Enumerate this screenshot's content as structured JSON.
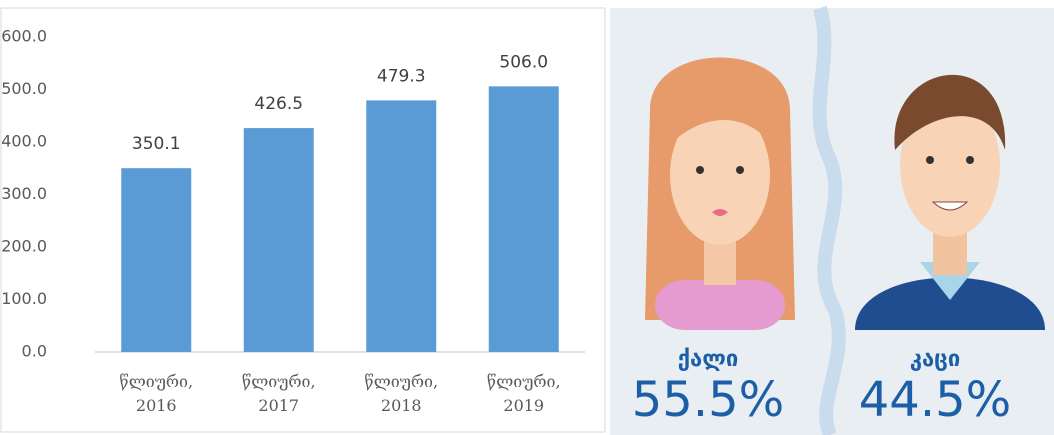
{
  "chart_data": [
    {
      "type": "bar",
      "categories": [
        "წლიური, 2016",
        "წლიური, 2017",
        "წლიური, 2018",
        "წლიური, 2019"
      ],
      "values": [
        350.1,
        426.5,
        479.3,
        506.0
      ],
      "value_labels": [
        "350.1",
        "426.5",
        "479.3",
        "506.0"
      ],
      "color": "#5b9bd5",
      "ylim": [
        0,
        600
      ],
      "yticks": [
        {
          "value": 0,
          "label": "0.0"
        },
        {
          "value": 100,
          "label": "100.0"
        },
        {
          "value": 200,
          "label": "200.0"
        },
        {
          "value": 300,
          "label": "300.0"
        },
        {
          "value": 400,
          "label": "400.0"
        },
        {
          "value": 500,
          "label": "500.0"
        },
        {
          "value": 600,
          "label": "600.0"
        }
      ],
      "grid": false
    },
    {
      "type": "pictogram",
      "categories": [
        "ქალი",
        "კაცი"
      ],
      "values": [
        55.5,
        44.5
      ],
      "value_labels": [
        "55.5%",
        "44.5%"
      ],
      "color": "#1d5fa6"
    }
  ]
}
